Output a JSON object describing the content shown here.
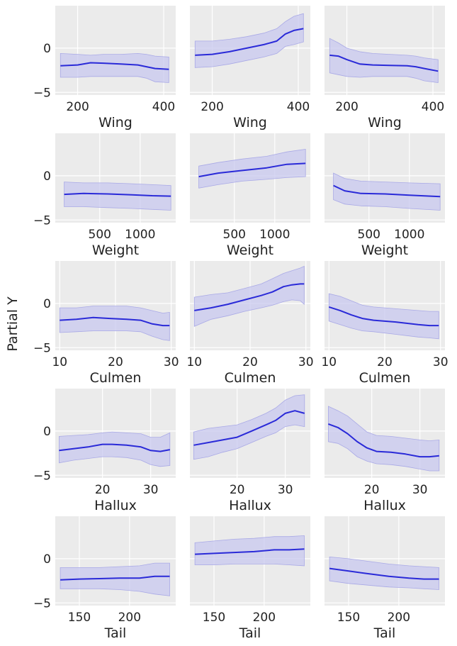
{
  "chart_data": {
    "type": "line",
    "title": "",
    "ylabel": "Partial Y",
    "ylim": [
      -5.3,
      4.8
    ],
    "yticks": [
      0,
      -5
    ],
    "ytick_labels": [
      "0",
      "−5"
    ],
    "columns": 3,
    "colors": {
      "background": "#ebebeb",
      "grid": "#ffffff",
      "line": "#2a2ad8",
      "band": "#c8c8ef",
      "band_edge": "#a9a9e6",
      "text": "#222222"
    },
    "rows": [
      {
        "xlabel": "Wing",
        "xlim": [
          148,
          428
        ],
        "xticks": [
          200,
          400
        ],
        "xtick_labels": [
          "200",
          "400"
        ],
        "panels": [
          {
            "x": [
              160,
              200,
              230,
              260,
              300,
              340,
              360,
              380,
              412
            ],
            "mean": [
              -2.0,
              -1.9,
              -1.65,
              -1.7,
              -1.8,
              -1.9,
              -2.1,
              -2.3,
              -2.4
            ],
            "lower": [
              -3.3,
              -3.3,
              -3.2,
              -3.2,
              -3.2,
              -3.2,
              -3.4,
              -3.8,
              -3.9
            ],
            "upper": [
              -0.6,
              -0.7,
              -0.8,
              -0.7,
              -0.7,
              -0.6,
              -0.7,
              -0.9,
              -1.0
            ]
          },
          {
            "x": [
              160,
              200,
              240,
              280,
              320,
              350,
              370,
              390,
              412
            ],
            "mean": [
              -0.8,
              -0.7,
              -0.4,
              0.0,
              0.4,
              0.8,
              1.6,
              2.0,
              2.2
            ],
            "lower": [
              -2.2,
              -2.1,
              -1.8,
              -1.4,
              -1.0,
              -0.6,
              0.2,
              0.4,
              0.7
            ],
            "upper": [
              0.8,
              0.8,
              1.0,
              1.3,
              1.7,
              2.2,
              3.0,
              3.6,
              3.9
            ]
          },
          {
            "x": [
              160,
              180,
              200,
              230,
              260,
              300,
              340,
              360,
              380,
              412
            ],
            "mean": [
              -0.8,
              -0.9,
              -1.3,
              -1.8,
              -1.9,
              -1.95,
              -2.0,
              -2.1,
              -2.3,
              -2.6
            ],
            "lower": [
              -2.8,
              -3.0,
              -3.2,
              -3.3,
              -3.2,
              -3.2,
              -3.2,
              -3.4,
              -3.7,
              -3.9
            ],
            "upper": [
              1.1,
              0.6,
              0.0,
              -0.4,
              -0.6,
              -0.7,
              -0.8,
              -0.9,
              -1.1,
              -1.3
            ]
          }
        ]
      },
      {
        "xlabel": "Weight",
        "xlim": [
          -50,
          1440
        ],
        "xticks": [
          500,
          1000
        ],
        "xtick_labels": [
          "500",
          "1000"
        ],
        "panels": [
          {
            "x": [
              60,
              300,
              600,
              900,
              1150,
              1380
            ],
            "mean": [
              -2.1,
              -2.0,
              -2.05,
              -2.15,
              -2.25,
              -2.3
            ],
            "lower": [
              -3.5,
              -3.5,
              -3.6,
              -3.7,
              -3.8,
              -3.9
            ],
            "upper": [
              -0.7,
              -0.8,
              -0.8,
              -0.9,
              -1.0,
              -1.1
            ]
          },
          {
            "x": [
              60,
              300,
              600,
              900,
              1150,
              1380
            ],
            "mean": [
              -0.1,
              0.3,
              0.6,
              0.9,
              1.3,
              1.4
            ],
            "lower": [
              -1.4,
              -1.0,
              -0.6,
              -0.4,
              -0.2,
              -0.1
            ],
            "upper": [
              1.1,
              1.5,
              1.9,
              2.2,
              2.7,
              3.0
            ]
          },
          {
            "x": [
              60,
              200,
              400,
              700,
              1000,
              1380
            ],
            "mean": [
              -1.1,
              -1.7,
              -2.0,
              -2.05,
              -2.2,
              -2.35
            ],
            "lower": [
              -2.7,
              -3.2,
              -3.4,
              -3.5,
              -3.7,
              -3.9
            ],
            "upper": [
              0.3,
              -0.3,
              -0.6,
              -0.7,
              -0.8,
              -0.9
            ]
          }
        ]
      },
      {
        "xlabel": "Culmen",
        "xlim": [
          9.2,
          30.8
        ],
        "xticks": [
          10,
          20,
          30
        ],
        "xtick_labels": [
          "10",
          "20",
          "30"
        ],
        "panels": [
          {
            "x": [
              10,
              13,
              16,
              19,
              22,
              24.5,
              26.5,
              28.5,
              29.7
            ],
            "mean": [
              -1.9,
              -1.8,
              -1.6,
              -1.7,
              -1.8,
              -1.9,
              -2.3,
              -2.5,
              -2.5
            ],
            "lower": [
              -3.3,
              -3.2,
              -3.1,
              -3.1,
              -3.1,
              -3.2,
              -3.7,
              -4.1,
              -4.2
            ],
            "upper": [
              -0.5,
              -0.5,
              -0.3,
              -0.3,
              -0.3,
              -0.5,
              -0.8,
              -1.1,
              -1.0
            ]
          },
          {
            "x": [
              10,
              13,
              16,
              19,
              22,
              24,
              26,
              27.5,
              29,
              29.7
            ],
            "mean": [
              -0.8,
              -0.5,
              -0.1,
              0.4,
              0.9,
              1.3,
              1.9,
              2.1,
              2.2,
              2.2
            ],
            "lower": [
              -2.6,
              -1.8,
              -1.4,
              -0.9,
              -0.5,
              -0.2,
              0.2,
              0.4,
              0.3,
              -0.1
            ],
            "upper": [
              0.7,
              1.0,
              1.2,
              1.7,
              2.2,
              2.8,
              3.4,
              3.7,
              4.0,
              4.2
            ]
          },
          {
            "x": [
              10,
              12,
              14,
              16,
              18,
              22,
              26,
              28,
              29.7
            ],
            "mean": [
              -0.4,
              -0.8,
              -1.3,
              -1.7,
              -1.9,
              -2.1,
              -2.4,
              -2.5,
              -2.5
            ],
            "lower": [
              -2.0,
              -2.4,
              -2.8,
              -3.1,
              -3.2,
              -3.5,
              -3.8,
              -3.9,
              -4.0
            ],
            "upper": [
              1.1,
              0.8,
              0.3,
              -0.2,
              -0.4,
              -0.6,
              -0.8,
              -0.9,
              -0.9
            ]
          }
        ]
      },
      {
        "xlabel": "Hallux",
        "xlim": [
          10.2,
          35.2
        ],
        "xticks": [
          20,
          30
        ],
        "xtick_labels": [
          "20",
          "30"
        ],
        "panels": [
          {
            "x": [
              11,
              14,
              17,
              20,
              22,
              25,
              28,
              30,
              32,
              34
            ],
            "mean": [
              -2.2,
              -2.0,
              -1.8,
              -1.5,
              -1.5,
              -1.6,
              -1.8,
              -2.2,
              -2.3,
              -2.1
            ],
            "lower": [
              -3.6,
              -3.3,
              -3.1,
              -2.9,
              -2.9,
              -3.0,
              -3.3,
              -3.8,
              -4.0,
              -3.9
            ],
            "upper": [
              -0.6,
              -0.5,
              -0.4,
              -0.2,
              -0.1,
              -0.2,
              -0.3,
              -0.7,
              -0.7,
              -0.2
            ]
          },
          {
            "x": [
              11,
              14,
              17,
              20,
              23,
              26,
              28,
              30,
              32,
              34
            ],
            "mean": [
              -1.6,
              -1.3,
              -1.0,
              -0.7,
              0.0,
              0.7,
              1.2,
              2.0,
              2.3,
              2.0
            ],
            "lower": [
              -3.2,
              -2.9,
              -2.4,
              -2.0,
              -1.3,
              -0.6,
              -0.2,
              0.5,
              0.7,
              0.5
            ],
            "upper": [
              -0.1,
              0.3,
              0.5,
              0.7,
              1.3,
              2.0,
              2.6,
              3.5,
              4.0,
              4.1
            ]
          },
          {
            "x": [
              11,
              13,
              15,
              17,
              19,
              21,
              24,
              27,
              30,
              32,
              34
            ],
            "mean": [
              0.8,
              0.4,
              -0.3,
              -1.2,
              -1.9,
              -2.3,
              -2.4,
              -2.6,
              -2.9,
              -2.9,
              -2.8
            ],
            "lower": [
              -1.2,
              -1.4,
              -2.0,
              -2.9,
              -3.4,
              -3.7,
              -3.8,
              -4.0,
              -4.3,
              -4.5,
              -4.5
            ],
            "upper": [
              2.8,
              2.3,
              1.7,
              0.8,
              -0.1,
              -0.5,
              -0.6,
              -0.8,
              -1.0,
              -1.1,
              -1.0
            ]
          }
        ]
      },
      {
        "xlabel": "Tail",
        "xlim": [
          126,
          246
        ],
        "xticks": [
          150,
          200
        ],
        "xtick_labels": [
          "150",
          "200"
        ],
        "panels": [
          {
            "x": [
              131,
              150,
              170,
              190,
              210,
              225,
              240
            ],
            "mean": [
              -2.4,
              -2.3,
              -2.25,
              -2.2,
              -2.2,
              -2.0,
              -2.0
            ],
            "lower": [
              -3.4,
              -3.4,
              -3.4,
              -3.5,
              -3.7,
              -4.0,
              -4.2
            ],
            "upper": [
              -1.0,
              -1.0,
              -1.0,
              -0.9,
              -0.8,
              -0.5,
              -0.5
            ]
          },
          {
            "x": [
              131,
              150,
              170,
              190,
              210,
              225,
              240
            ],
            "mean": [
              0.5,
              0.6,
              0.7,
              0.8,
              1.0,
              1.0,
              1.1
            ],
            "lower": [
              -0.7,
              -0.7,
              -0.6,
              -0.6,
              -0.6,
              -0.7,
              -0.8
            ],
            "upper": [
              1.8,
              2.0,
              2.2,
              2.3,
              2.5,
              2.5,
              2.6
            ]
          },
          {
            "x": [
              131,
              150,
              170,
              190,
              210,
              225,
              240
            ],
            "mean": [
              -1.1,
              -1.4,
              -1.7,
              -2.0,
              -2.2,
              -2.3,
              -2.3
            ],
            "lower": [
              -2.5,
              -2.8,
              -3.0,
              -3.2,
              -3.3,
              -3.4,
              -3.5
            ],
            "upper": [
              0.2,
              0.0,
              -0.3,
              -0.6,
              -0.8,
              -0.9,
              -1.0
            ]
          }
        ]
      }
    ]
  }
}
